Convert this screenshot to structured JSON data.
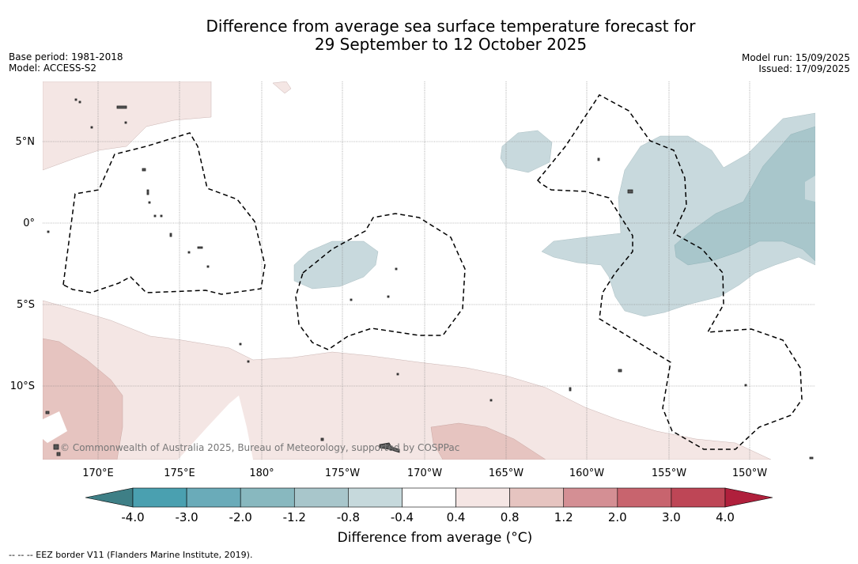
{
  "header": {
    "title_line1": "Difference from average sea surface temperature forecast for",
    "title_line2": "29 September to 12 October 2025",
    "base_period": "Base period: 1981-2018",
    "model": "Model: ACCESS-S2",
    "model_run": "Model run: 15/09/2025",
    "issued": "Issued: 17/09/2025"
  },
  "map": {
    "lat_labels": [
      "5°N",
      "0°",
      "5°S",
      "10°S"
    ],
    "lon_labels": [
      "170°E",
      "175°E",
      "180°",
      "175°W",
      "170°W",
      "165°W",
      "160°W",
      "155°W",
      "150°W"
    ],
    "copyright": "© Commonwealth of Australia 2025, Bureau of Meteorology, supported by COSPPac",
    "colors": {
      "cool_light": "#c8d9dd",
      "cool_mid": "#a8c6cb",
      "warm_light": "#f4e6e4",
      "warm_mid": "#e6c4c0",
      "land": "#555555"
    }
  },
  "colorbar": {
    "title": "Difference from average (°C)",
    "tick_labels": [
      "-4.0",
      "-3.0",
      "-2.0",
      "-1.2",
      "-0.8",
      "-0.4",
      "0.4",
      "0.8",
      "1.2",
      "2.0",
      "3.0",
      "4.0"
    ],
    "colors": [
      "#3e7f86",
      "#4aa0b0",
      "#6aabb9",
      "#88b8bf",
      "#a8c6cb",
      "#c6d9dc",
      "#ffffff",
      "#f5e6e4",
      "#e6c4c0",
      "#d48f94",
      "#c8646e",
      "#be4656",
      "#b0203c"
    ]
  },
  "footnote": "--  --  -- EEZ border V11 (Flanders Marine Institute, 2019)."
}
